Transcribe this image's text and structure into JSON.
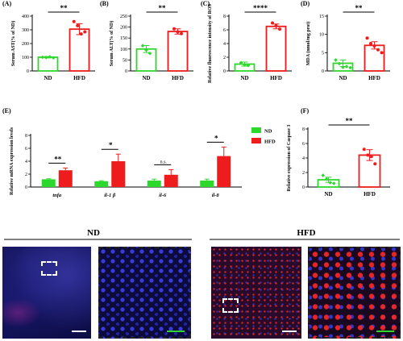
{
  "colors": {
    "nd": "#2dd82d",
    "hfd": "#ee1c1c",
    "dot_nd": "#2dd82d",
    "dot_hfd": "#ee1c1c"
  },
  "chart_data": [
    {
      "type": "bar",
      "panel": "(A)",
      "categories": [
        "ND",
        "HFD"
      ],
      "values": [
        100,
        305
      ],
      "errors": [
        5,
        40
      ],
      "points": [
        [
          100,
          98,
          103,
          96
        ],
        [
          360,
          330,
          270,
          285
        ]
      ],
      "ylabel": "Serum AST(% of ND)",
      "ylim": [
        0,
        400
      ],
      "yticks": [
        0,
        100,
        200,
        300,
        400
      ],
      "significance": "**",
      "grid": false
    },
    {
      "type": "bar",
      "panel": "(B)",
      "categories": [
        "ND",
        "HFD"
      ],
      "values": [
        100,
        180
      ],
      "errors": [
        16,
        12
      ],
      "points": [
        [
          115,
          95,
          80
        ],
        [
          192,
          178,
          170
        ]
      ],
      "ylabel": "Serum ALT(% of ND)",
      "ylim": [
        0,
        250
      ],
      "yticks": [
        0,
        50,
        100,
        150,
        200,
        250
      ],
      "significance": "**",
      "grid": false
    },
    {
      "type": "bar",
      "panel": "(C)",
      "categories": [
        "ND",
        "HFD"
      ],
      "values": [
        1.0,
        6.5
      ],
      "errors": [
        0.3,
        0.35
      ],
      "points": [
        [
          1.2,
          0.9,
          0.8
        ],
        [
          7.0,
          6.6,
          6.1
        ]
      ],
      "ylabel": "Relative fluorescence intensity of ROS",
      "ylim": [
        0,
        8
      ],
      "yticks": [
        0,
        2,
        4,
        6,
        8
      ],
      "significance": "****",
      "grid": false
    },
    {
      "type": "bar",
      "panel": "(D)",
      "categories": [
        "ND",
        "HFD"
      ],
      "values": [
        2.1,
        7.0
      ],
      "errors": [
        0.9,
        1.0
      ],
      "points": [
        [
          3.0,
          2.0,
          1.0,
          1.2,
          0.9
        ],
        [
          9.0,
          7.5,
          6.8,
          5.8,
          5.0
        ]
      ],
      "ylabel": "MDA (nmol/mg prot)",
      "ylim": [
        0,
        15
      ],
      "yticks": [
        0,
        5,
        10,
        15
      ],
      "significance": "**",
      "grid": false
    },
    {
      "type": "bar",
      "panel": "(E)",
      "categories": [
        "tnfa",
        "il-1 β",
        "il-6",
        "il-8"
      ],
      "series": [
        {
          "name": "ND",
          "values": [
            1.2,
            0.9,
            1.0,
            1.0
          ],
          "errors": [
            0.08,
            0.08,
            0.22,
            0.22
          ]
        },
        {
          "name": "HFD",
          "values": [
            2.6,
            4.0,
            1.9,
            4.8
          ],
          "errors": [
            0.35,
            1.1,
            0.8,
            1.4
          ]
        }
      ],
      "ylabel": "Relative mRNA expression levels",
      "ylim": [
        0,
        8
      ],
      "yticks": [
        0,
        2,
        4,
        6,
        8
      ],
      "significance": [
        "**",
        "*",
        "n.s.",
        "*"
      ],
      "legend": "top-right",
      "grid": false
    },
    {
      "type": "bar",
      "panel": "(F)",
      "categories": [
        "ND",
        "HFD"
      ],
      "values": [
        1.0,
        4.4
      ],
      "errors": [
        0.35,
        0.75
      ],
      "points": [
        [
          1.6,
          1.1,
          0.6,
          0.5
        ],
        [
          5.2,
          4.4,
          4.2,
          3.2
        ]
      ],
      "ylabel": "Relative expression of Caspase 3",
      "ylim": [
        0,
        8
      ],
      "yticks": [
        0,
        2,
        4,
        6,
        8
      ],
      "significance": "**",
      "grid": false
    }
  ],
  "micrographs": {
    "group_nd": "ND",
    "group_hfd": "HFD"
  }
}
